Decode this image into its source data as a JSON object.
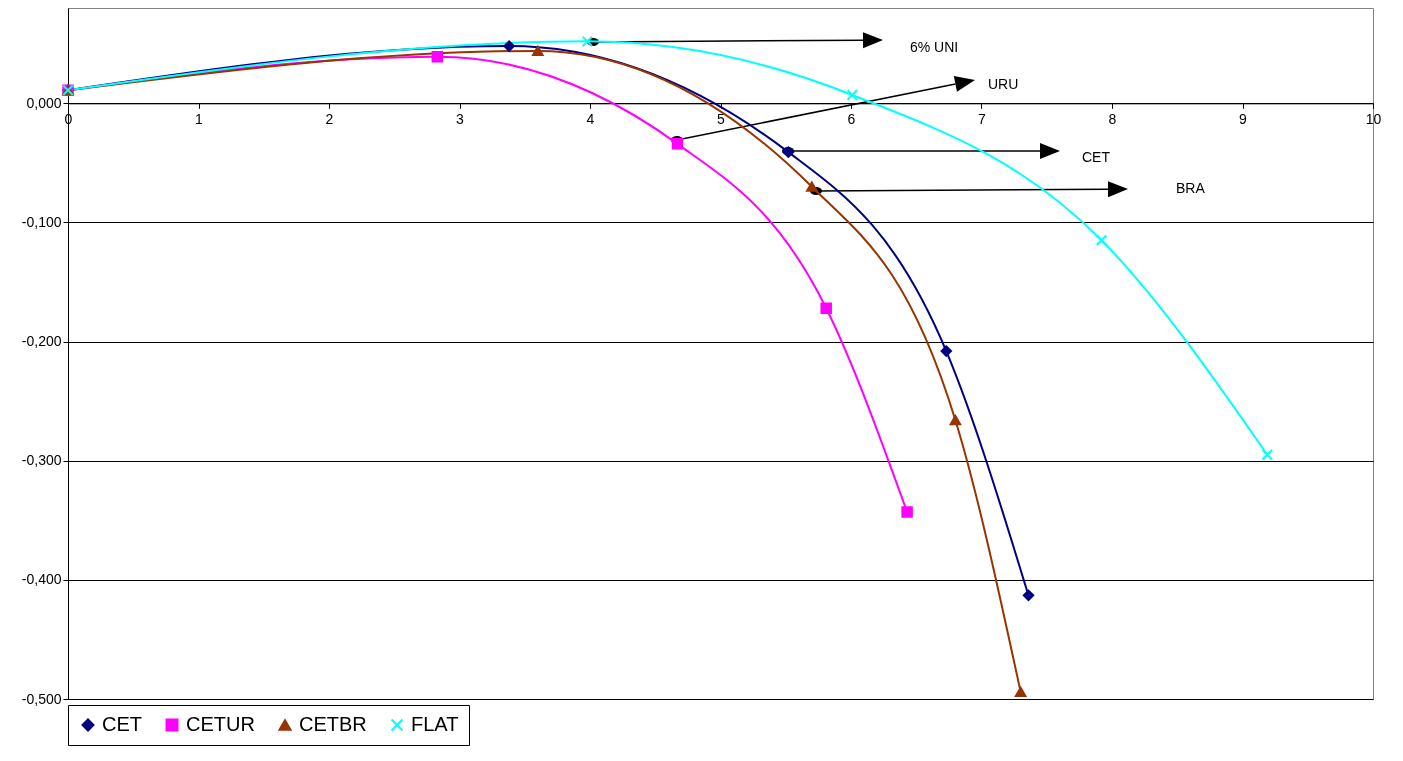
{
  "chart_data": {
    "type": "line",
    "series": [
      {
        "name": "CET",
        "color": "#000080",
        "marker": "diamond",
        "x": [
          0,
          3.38,
          5.52,
          6.73,
          7.36
        ],
        "values": [
          0.011,
          0.048,
          -0.041,
          -0.208,
          -0.413
        ]
      },
      {
        "name": "CETUR",
        "color": "#ff00ff",
        "marker": "square",
        "x": [
          0,
          2.83,
          4.67,
          5.81,
          6.43
        ],
        "values": [
          0.011,
          0.039,
          -0.034,
          -0.172,
          -0.343
        ]
      },
      {
        "name": "CETBR",
        "color": "#993300",
        "marker": "triangle",
        "x": [
          0,
          3.6,
          5.7,
          6.8,
          7.3
        ],
        "values": [
          0.011,
          0.044,
          -0.07,
          -0.266,
          -0.494
        ]
      },
      {
        "name": "FLAT",
        "color": "#00ffff",
        "marker": "cross",
        "x": [
          0,
          3.98,
          6.01,
          7.92,
          9.19
        ],
        "values": [
          0.011,
          0.052,
          0.007,
          -0.115,
          -0.295
        ]
      }
    ],
    "xlim": [
      0,
      10
    ],
    "xticks": [
      0,
      1,
      2,
      3,
      4,
      5,
      6,
      7,
      8,
      9,
      10
    ],
    "ylim": [
      -0.5,
      0.08
    ],
    "yticks": [
      {
        "value": 0,
        "label": "0,000"
      },
      {
        "value": -0.1,
        "label": "-0,100"
      },
      {
        "value": -0.2,
        "label": "-0,200"
      },
      {
        "value": -0.3,
        "label": "-0,300"
      },
      {
        "value": -0.4,
        "label": "-0,400"
      },
      {
        "value": -0.5,
        "label": "-0,500"
      }
    ],
    "grid": "y",
    "legend": "bottom",
    "annotations": [
      "6% UNI",
      "URU",
      "CET",
      "BRA"
    ]
  }
}
